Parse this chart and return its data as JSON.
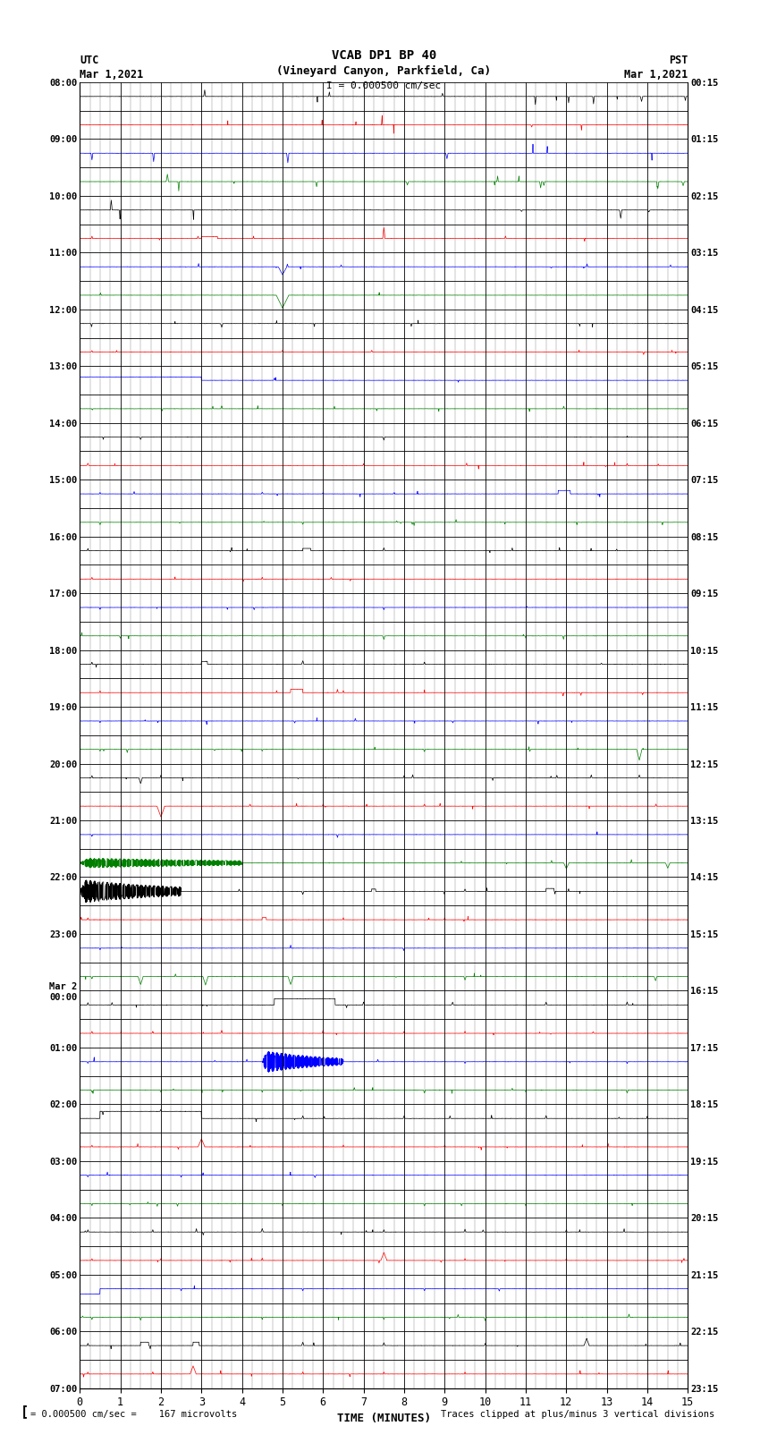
{
  "title_line1": "VCAB DP1 BP 40",
  "title_line2": "(Vineyard Canyon, Parkfield, Ca)",
  "scale_label": "I = 0.000500 cm/sec",
  "left_label_line1": "UTC",
  "left_label_line2": "Mar 1,2021",
  "right_label_line1": "PST",
  "right_label_line2": "Mar 1,2021",
  "xlabel": "TIME (MINUTES)",
  "footer_left": "= 0.000500 cm/sec =    167 microvolts",
  "footer_right": "Traces clipped at plus/minus 3 vertical divisions",
  "utc_times": [
    "08:00",
    "",
    "09:00",
    "",
    "10:00",
    "",
    "11:00",
    "",
    "12:00",
    "",
    "13:00",
    "",
    "14:00",
    "",
    "15:00",
    "",
    "16:00",
    "",
    "17:00",
    "",
    "18:00",
    "",
    "19:00",
    "",
    "20:00",
    "",
    "21:00",
    "",
    "22:00",
    "",
    "23:00",
    "",
    "Mar 2\n00:00",
    "",
    "01:00",
    "",
    "02:00",
    "",
    "03:00",
    "",
    "04:00",
    "",
    "05:00",
    "",
    "06:00",
    "",
    "07:00",
    ""
  ],
  "pst_times": [
    "00:15",
    "",
    "01:15",
    "",
    "02:15",
    "",
    "03:15",
    "",
    "04:15",
    "",
    "05:15",
    "",
    "06:15",
    "",
    "07:15",
    "",
    "08:15",
    "",
    "09:15",
    "",
    "10:15",
    "",
    "11:15",
    "",
    "12:15",
    "",
    "13:15",
    "",
    "14:15",
    "",
    "15:15",
    "",
    "16:15",
    "",
    "17:15",
    "",
    "18:15",
    "",
    "19:15",
    "",
    "20:15",
    "",
    "21:15",
    "",
    "22:15",
    "",
    "23:15",
    ""
  ],
  "n_rows": 46,
  "n_minutes": 15,
  "background": "#ffffff",
  "trace_colors": [
    "#000000",
    "#ff0000",
    "#0000ff",
    "#008000"
  ]
}
